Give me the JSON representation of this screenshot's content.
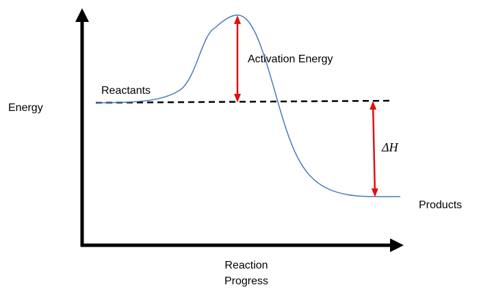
{
  "labels": {
    "y_axis": "Energy",
    "x_axis": [
      "Reaction",
      "Progress"
    ],
    "reactants": "Reactants",
    "activation_energy": "Activation Energy",
    "enthalpy_change": "ΔH",
    "products": "Products"
  }
}
